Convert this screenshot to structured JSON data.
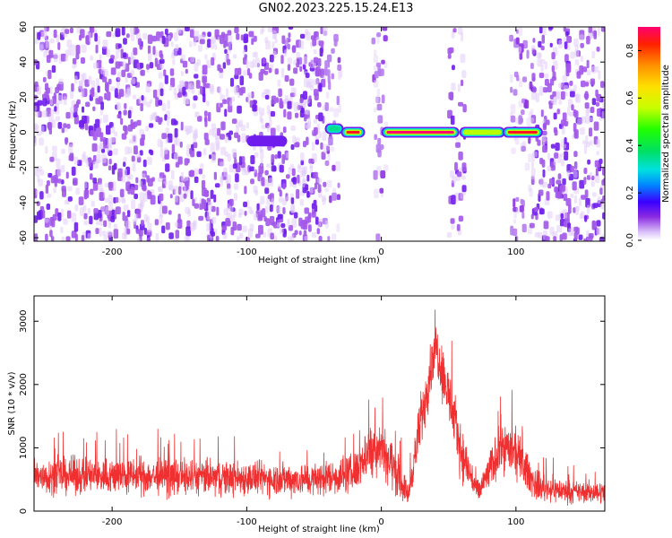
{
  "title": "GN02.2023.225.15.24.E13",
  "chart_data": [
    {
      "type": "heatmap",
      "xlabel": "Height of straight line (km)",
      "ylabel": "Frequency (Hz)",
      "xlim": [
        -258,
        166
      ],
      "ylim": [
        -62,
        60
      ],
      "xticks": [
        -200,
        -100,
        0,
        100
      ],
      "yticks": [
        -60,
        -40,
        -20,
        0,
        20,
        40,
        60
      ],
      "colorbar": {
        "label": "Normalized spectral amplitude",
        "range": [
          0.0,
          0.9
        ],
        "ticks": [
          0.0,
          0.2,
          0.4,
          0.6,
          0.8
        ]
      },
      "features": [
        {
          "kind": "noise-region",
          "x_range": [
            -258,
            -42
          ],
          "level": 0.05
        },
        {
          "kind": "noise-column",
          "x_range": [
            -42,
            -30
          ],
          "level": 0.04
        },
        {
          "kind": "noise-column",
          "x_range": [
            -6,
            4
          ],
          "level": 0.04
        },
        {
          "kind": "noise-column",
          "x_range": [
            50,
            62
          ],
          "level": 0.05
        },
        {
          "kind": "noise-column",
          "x_range": [
            96,
            112
          ],
          "level": 0.04
        },
        {
          "kind": "noise-region",
          "x_range": [
            112,
            166
          ],
          "level": 0.05
        },
        {
          "kind": "signal-band",
          "x_range": [
            -100,
            -70
          ],
          "freq": -5,
          "level": 0.12
        },
        {
          "kind": "signal-band",
          "x_range": [
            -42,
            -28
          ],
          "freq": 2,
          "level": 0.35
        },
        {
          "kind": "signal-band",
          "x_range": [
            -30,
            -12
          ],
          "freq": 0,
          "level": 0.85
        },
        {
          "kind": "signal-band",
          "x_range": [
            0,
            58
          ],
          "freq": 0,
          "level": 0.9
        },
        {
          "kind": "signal-band",
          "x_range": [
            58,
            92
          ],
          "freq": 0,
          "level": 0.55
        },
        {
          "kind": "signal-band",
          "x_range": [
            90,
            120
          ],
          "freq": 0,
          "level": 0.85
        }
      ]
    },
    {
      "type": "line",
      "xlabel": "Height of straight line (km)",
      "ylabel": "SNR (10 * v/v)",
      "xlim": [
        -258,
        166
      ],
      "ylim": [
        0,
        3400
      ],
      "xticks": [
        -200,
        -100,
        0,
        100
      ],
      "yticks": [
        0,
        1000,
        2000,
        3000
      ],
      "color": "#f03030",
      "envelope": [
        {
          "x": -258,
          "mean": 560,
          "spread": 420
        },
        {
          "x": -200,
          "mean": 560,
          "spread": 420
        },
        {
          "x": -150,
          "mean": 540,
          "spread": 420
        },
        {
          "x": -100,
          "mean": 520,
          "spread": 400
        },
        {
          "x": -50,
          "mean": 500,
          "spread": 380
        },
        {
          "x": -20,
          "mean": 600,
          "spread": 450
        },
        {
          "x": -10,
          "mean": 950,
          "spread": 600
        },
        {
          "x": 0,
          "mean": 1050,
          "spread": 650
        },
        {
          "x": 10,
          "mean": 650,
          "spread": 550
        },
        {
          "x": 20,
          "mean": 250,
          "spread": 250
        },
        {
          "x": 30,
          "mean": 1500,
          "spread": 700
        },
        {
          "x": 40,
          "mean": 2650,
          "spread": 600
        },
        {
          "x": 48,
          "mean": 2000,
          "spread": 700
        },
        {
          "x": 60,
          "mean": 900,
          "spread": 600
        },
        {
          "x": 72,
          "mean": 280,
          "spread": 300
        },
        {
          "x": 90,
          "mean": 1050,
          "spread": 600
        },
        {
          "x": 100,
          "mean": 900,
          "spread": 550
        },
        {
          "x": 115,
          "mean": 400,
          "spread": 350
        },
        {
          "x": 140,
          "mean": 300,
          "spread": 250
        },
        {
          "x": 166,
          "mean": 300,
          "spread": 250
        }
      ]
    }
  ]
}
